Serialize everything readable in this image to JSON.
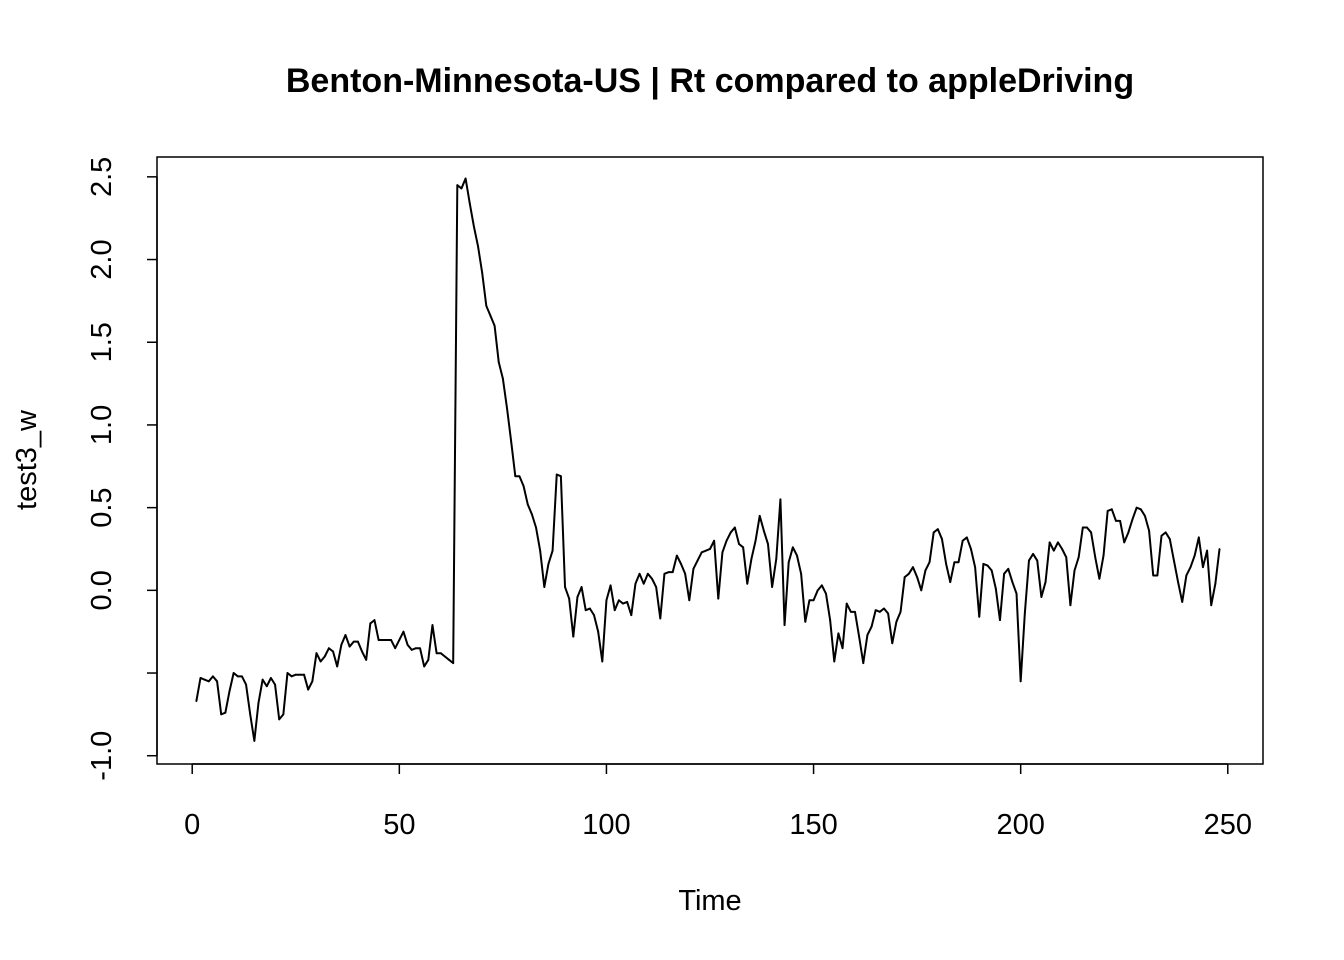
{
  "chart_data": {
    "type": "line",
    "title": "Benton-Minnesota-US | Rt compared to appleDriving",
    "xlabel": "Time",
    "ylabel": "test3_w",
    "xlim": [
      -8.5,
      258.5
    ],
    "ylim": [
      -1.05,
      2.62
    ],
    "xticks": [
      0,
      50,
      100,
      150,
      200,
      250
    ],
    "xtick_labels": [
      "0",
      "50",
      "100",
      "150",
      "200",
      "250"
    ],
    "yticks": [
      -1.0,
      0.0,
      0.5,
      1.0,
      1.5,
      2.0,
      2.5
    ],
    "ytick_labels": [
      "-1.0",
      "0.0",
      "0.5",
      "1.0",
      "1.5",
      "2.0",
      "2.5"
    ],
    "grid": false,
    "legend": "none",
    "line_color": "#000000",
    "series": [
      {
        "x": [
          1,
          2,
          3,
          4,
          5,
          6,
          7,
          8,
          9,
          10,
          11,
          12,
          13,
          14,
          15,
          16,
          17,
          18,
          19,
          20,
          21,
          22,
          23,
          24,
          25,
          26,
          27,
          28,
          29,
          30,
          31,
          32,
          33,
          34,
          35,
          36,
          37,
          38,
          39,
          40,
          41,
          42,
          43,
          44,
          45,
          46,
          47,
          48,
          49,
          50,
          51,
          52,
          53,
          54,
          55,
          56,
          57,
          58,
          59,
          60,
          61,
          62,
          63,
          64,
          65,
          66,
          67,
          68,
          69,
          70,
          71,
          72,
          73,
          74,
          75,
          76,
          77,
          78,
          79,
          80,
          81,
          82,
          83,
          84,
          85,
          86,
          87,
          88,
          89,
          90,
          91,
          92,
          93,
          94,
          95,
          96,
          97,
          98,
          99,
          100,
          101,
          102,
          103,
          104,
          105,
          106,
          107,
          108,
          109,
          110,
          111,
          112,
          113,
          114,
          115,
          116,
          117,
          118,
          119,
          120,
          121,
          122,
          123,
          124,
          125,
          126,
          127,
          128,
          129,
          130,
          131,
          132,
          133,
          134,
          135,
          136,
          137,
          138,
          139,
          140,
          141,
          142,
          143,
          144,
          145,
          146,
          147,
          148,
          149,
          150,
          151,
          152,
          153,
          154,
          155,
          156,
          157,
          158,
          159,
          160,
          161,
          162,
          163,
          164,
          165,
          166,
          167,
          168,
          169,
          170,
          171,
          172,
          173,
          174,
          175,
          176,
          177,
          178,
          179,
          180,
          181,
          182,
          183,
          184,
          185,
          186,
          187,
          188,
          189,
          190,
          191,
          192,
          193,
          194,
          195,
          196,
          197,
          198,
          199,
          200,
          201,
          202,
          203,
          204,
          205,
          206,
          207,
          208,
          209,
          210,
          211,
          212,
          213,
          214,
          215,
          216,
          217,
          218,
          219,
          220,
          221,
          222,
          223,
          224,
          225,
          226,
          227,
          228,
          229,
          230,
          231,
          232,
          233,
          234,
          235,
          236,
          237,
          238,
          239,
          240,
          241,
          242,
          243,
          244,
          245,
          246,
          247,
          248
        ],
        "values": [
          -0.67,
          -0.53,
          -0.54,
          -0.55,
          -0.52,
          -0.55,
          -0.75,
          -0.74,
          -0.61,
          -0.5,
          -0.52,
          -0.52,
          -0.57,
          -0.75,
          -0.91,
          -0.68,
          -0.54,
          -0.58,
          -0.53,
          -0.57,
          -0.78,
          -0.75,
          -0.5,
          -0.52,
          -0.51,
          -0.51,
          -0.51,
          -0.6,
          -0.55,
          -0.38,
          -0.43,
          -0.4,
          -0.35,
          -0.37,
          -0.46,
          -0.33,
          -0.27,
          -0.34,
          -0.31,
          -0.31,
          -0.37,
          -0.42,
          -0.2,
          -0.18,
          -0.3,
          -0.3,
          -0.3,
          -0.3,
          -0.35,
          -0.3,
          -0.25,
          -0.33,
          -0.36,
          -0.35,
          -0.35,
          -0.46,
          -0.42,
          -0.21,
          -0.38,
          -0.38,
          -0.4,
          -0.42,
          -0.44,
          2.45,
          2.43,
          2.49,
          2.34,
          2.2,
          2.08,
          1.92,
          1.72,
          1.66,
          1.6,
          1.38,
          1.28,
          1.1,
          0.9,
          0.69,
          0.69,
          0.63,
          0.52,
          0.46,
          0.38,
          0.24,
          0.02,
          0.16,
          0.24,
          0.7,
          0.69,
          0.02,
          -0.05,
          -0.28,
          -0.04,
          0.02,
          -0.12,
          -0.11,
          -0.15,
          -0.25,
          -0.43,
          -0.06,
          0.03,
          -0.12,
          -0.06,
          -0.08,
          -0.07,
          -0.15,
          0.04,
          0.1,
          0.04,
          0.1,
          0.07,
          0.02,
          -0.17,
          0.1,
          0.11,
          0.11,
          0.21,
          0.16,
          0.1,
          -0.06,
          0.13,
          0.18,
          0.23,
          0.24,
          0.25,
          0.3,
          -0.05,
          0.23,
          0.3,
          0.35,
          0.38,
          0.28,
          0.26,
          0.04,
          0.19,
          0.3,
          0.45,
          0.36,
          0.28,
          0.02,
          0.19,
          0.55,
          -0.21,
          0.17,
          0.26,
          0.21,
          0.1,
          -0.19,
          -0.06,
          -0.06,
          0.0,
          0.03,
          -0.02,
          -0.18,
          -0.43,
          -0.26,
          -0.35,
          -0.08,
          -0.13,
          -0.13,
          -0.28,
          -0.44,
          -0.27,
          -0.22,
          -0.12,
          -0.13,
          -0.11,
          -0.14,
          -0.32,
          -0.19,
          -0.13,
          0.08,
          0.1,
          0.14,
          0.08,
          0.0,
          0.12,
          0.17,
          0.35,
          0.37,
          0.31,
          0.16,
          0.05,
          0.17,
          0.17,
          0.3,
          0.32,
          0.25,
          0.14,
          -0.16,
          0.16,
          0.15,
          0.12,
          0.01,
          -0.18,
          0.1,
          0.13,
          0.05,
          -0.02,
          -0.55,
          -0.14,
          0.18,
          0.22,
          0.18,
          -0.04,
          0.05,
          0.29,
          0.24,
          0.29,
          0.25,
          0.2,
          -0.09,
          0.12,
          0.2,
          0.38,
          0.38,
          0.35,
          0.2,
          0.07,
          0.21,
          0.48,
          0.49,
          0.42,
          0.42,
          0.29,
          0.35,
          0.43,
          0.5,
          0.49,
          0.45,
          0.36,
          0.09,
          0.09,
          0.33,
          0.35,
          0.31,
          0.18,
          0.05,
          -0.07,
          0.09,
          0.14,
          0.21,
          0.32,
          0.14,
          0.24,
          -0.09,
          0.04,
          0.25
        ]
      }
    ]
  }
}
